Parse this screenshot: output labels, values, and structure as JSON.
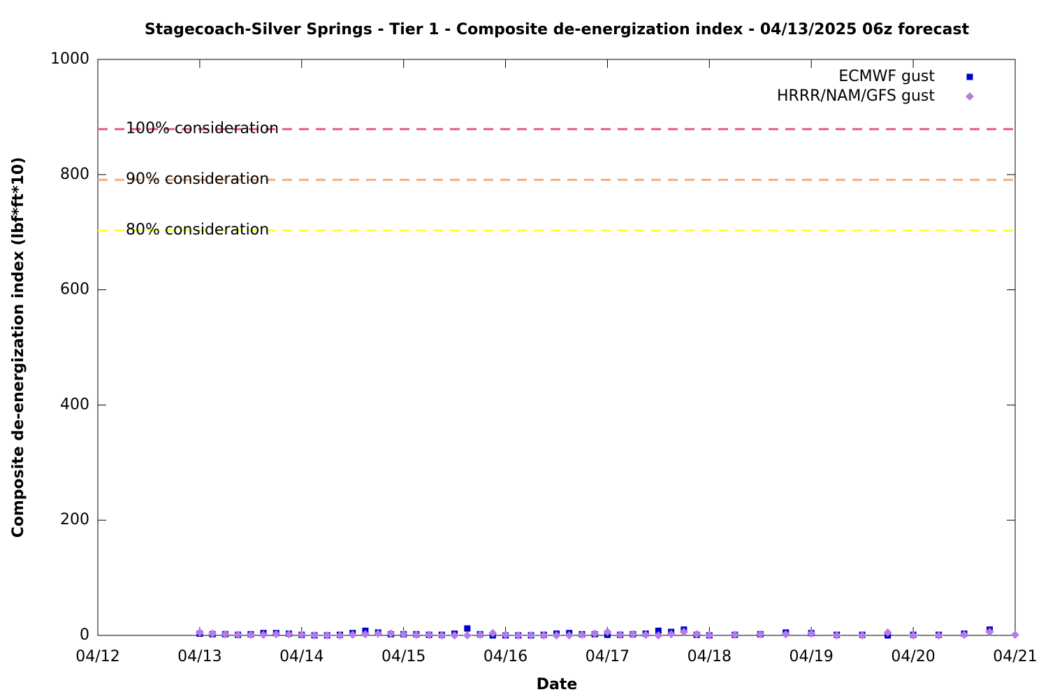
{
  "chart_data": {
    "type": "scatter",
    "title": "Stagecoach-Silver Springs - Tier 1 - Composite de-energization index - 04/13/2025 06z forecast",
    "x_label": "Date",
    "y_label": "Composite de-energization index (lbf*ft*10)",
    "xlim": [
      0,
      9
    ],
    "xticks": [
      {
        "value": 0,
        "label": "04/12"
      },
      {
        "value": 1,
        "label": "04/13"
      },
      {
        "value": 2,
        "label": "04/14"
      },
      {
        "value": 3,
        "label": "04/15"
      },
      {
        "value": 4,
        "label": "04/16"
      },
      {
        "value": 5,
        "label": "04/17"
      },
      {
        "value": 6,
        "label": "04/18"
      },
      {
        "value": 7,
        "label": "04/19"
      },
      {
        "value": 8,
        "label": "04/20"
      },
      {
        "value": 9,
        "label": "04/21"
      }
    ],
    "ylim": [
      0,
      1000
    ],
    "yticks": [
      0,
      200,
      400,
      600,
      800,
      1000
    ],
    "grid": false,
    "legend": "top-right",
    "thresholds": [
      {
        "label": "100% consideration",
        "value": 879,
        "color": "#e0607e"
      },
      {
        "label": "90% consideration",
        "value": 791,
        "color": "#f4ad7a"
      },
      {
        "label": "80% consideration",
        "value": 703,
        "color": "#ffff33"
      }
    ],
    "series": [
      {
        "name": "ECMWF gust",
        "color": "#0000cc",
        "marker": "square",
        "x": [
          1,
          1.125,
          1.25,
          1.375,
          1.5,
          1.625,
          1.75,
          1.875,
          2,
          2.125,
          2.25,
          2.375,
          2.5,
          2.625,
          2.75,
          2.875,
          3,
          3.125,
          3.25,
          3.375,
          3.5,
          3.625,
          3.75,
          3.875,
          4,
          4.125,
          4.25,
          4.375,
          4.5,
          4.625,
          4.75,
          4.875,
          5,
          5.125,
          5.25,
          5.375,
          5.5,
          5.625,
          5.75,
          5.875,
          6,
          6.25,
          6.5,
          6.75,
          7,
          7.25,
          7.5,
          7.75,
          8,
          8.25,
          8.5,
          8.75
        ],
        "values": [
          3,
          2,
          2,
          1,
          2,
          4,
          4,
          3,
          1,
          0,
          0,
          1,
          4,
          8,
          5,
          2,
          2,
          2,
          1,
          1,
          3,
          12,
          2,
          0,
          0,
          0,
          0,
          1,
          3,
          4,
          2,
          2,
          1,
          1,
          2,
          3,
          8,
          6,
          10,
          1,
          0,
          1,
          2,
          5,
          4,
          1,
          1,
          0,
          1,
          1,
          3,
          10
        ]
      },
      {
        "name": "HRRR/NAM/GFS gust",
        "color": "#b57be6",
        "marker": "diamond",
        "x": [
          1,
          1.125,
          1.25,
          1.375,
          1.5,
          1.625,
          1.75,
          1.875,
          2,
          2.125,
          2.25,
          2.375,
          2.5,
          2.625,
          2.75,
          2.875,
          3,
          3.125,
          3.25,
          3.375,
          3.5,
          3.625,
          3.75,
          3.875,
          4,
          4.125,
          4.25,
          4.375,
          4.5,
          4.625,
          4.75,
          4.875,
          5,
          5.125,
          5.25,
          5.375,
          5.5,
          5.625,
          5.75,
          5.875,
          6,
          6.25,
          6.5,
          6.75,
          7,
          7.25,
          7.5,
          7.75,
          8,
          8.25,
          8.5,
          8.75,
          9
        ],
        "values": [
          5,
          3,
          2,
          1,
          1,
          1,
          2,
          2,
          1,
          0,
          0,
          0,
          1,
          2,
          3,
          3,
          2,
          1,
          1,
          0,
          0,
          0,
          1,
          4,
          1,
          0,
          0,
          0,
          0,
          0,
          1,
          3,
          6,
          1,
          2,
          1,
          0,
          2,
          6,
          2,
          0,
          1,
          2,
          2,
          3,
          0,
          0,
          5,
          0,
          0,
          1,
          6,
          1
        ]
      }
    ]
  }
}
